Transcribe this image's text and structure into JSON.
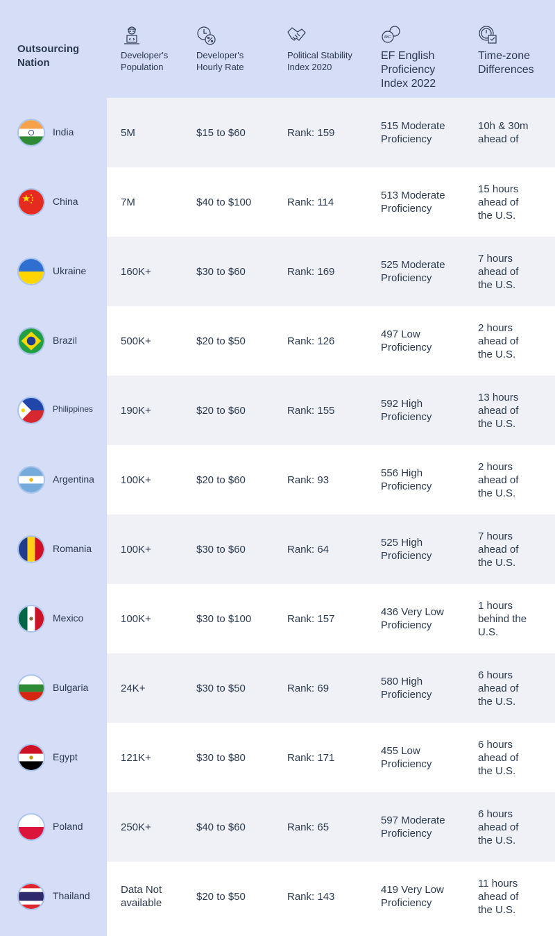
{
  "header": {
    "nation": "Outsourcing Nation",
    "population": "Developer's Population",
    "rate": "Developer's Hourly Rate",
    "stability": "Political Stability Index 2020",
    "english": "EF English Proficiency Index 2022",
    "timezone": "Time-zone Differences"
  },
  "icons": {
    "population": "developer-laptop-icon",
    "rate": "clock-percent-icon",
    "stability": "handshake-icon",
    "english": "speech-bubbles-abc-icon",
    "timezone": "clock-calendar-icon"
  },
  "colors": {
    "header_bg": "#d5ddf7",
    "row_alt": "#eff1f6",
    "row": "#ffffff",
    "text": "#2b3a4f"
  },
  "rows": [
    {
      "country": "India",
      "flag": "india-flag",
      "population": "5M",
      "rate": "$15 to $60",
      "stability": "Rank: 159",
      "english": "515 Moderate Proficiency",
      "timezone": "10h & 30m ahead of"
    },
    {
      "country": "China",
      "flag": "china-flag",
      "population": "7M",
      "rate": "$40 to $100",
      "stability": "Rank: 114",
      "english": "513 Moderate Proficiency",
      "timezone": "15 hours ahead of the U.S."
    },
    {
      "country": "Ukraine",
      "flag": "ukraine-flag",
      "population": "160K+",
      "rate": "$30 to $60",
      "stability": "Rank: 169",
      "english": "525 Moderate Proficiency",
      "timezone": "7 hours ahead of the U.S."
    },
    {
      "country": "Brazil",
      "flag": "brazil-flag",
      "population": "500K+",
      "rate": "$20 to $50",
      "stability": "Rank: 126",
      "english": "497 Low Proficiency",
      "timezone": "2 hours ahead of the U.S."
    },
    {
      "country": "Philippines",
      "flag": "philippines-flag",
      "population": "190K+",
      "rate": "$20 to $60",
      "stability": "Rank: 155",
      "english": "592 High Proficiency",
      "timezone": "13 hours ahead of the U.S."
    },
    {
      "country": "Argentina",
      "flag": "argentina-flag",
      "population": "100K+",
      "rate": "$20 to $60",
      "stability": "Rank: 93",
      "english": "556 High Proficiency",
      "timezone": "2 hours ahead of the U.S."
    },
    {
      "country": "Romania",
      "flag": "romania-flag",
      "population": "100K+",
      "rate": "$30 to $60",
      "stability": "Rank: 64",
      "english": "525 High Proficiency",
      "timezone": "7 hours ahead of the U.S."
    },
    {
      "country": "Mexico",
      "flag": "mexico-flag",
      "population": "100K+",
      "rate": "$30 to $100",
      "stability": "Rank: 157",
      "english": "436 Very Low Proficiency",
      "timezone": "1 hours behind the U.S."
    },
    {
      "country": "Bulgaria",
      "flag": "bulgaria-flag",
      "population": "24K+",
      "rate": "$30 to $50",
      "stability": "Rank: 69",
      "english": "580 High Proficiency",
      "timezone": "6 hours ahead of the U.S."
    },
    {
      "country": "Egypt",
      "flag": "egypt-flag",
      "population": "121K+",
      "rate": "$30 to $80",
      "stability": "Rank: 171",
      "english": "455 Low Proficiency",
      "timezone": "6 hours ahead of the U.S."
    },
    {
      "country": "Poland",
      "flag": "poland-flag",
      "population": "250K+",
      "rate": "$40 to $60",
      "stability": "Rank: 65",
      "english": "597 Moderate Proficiency",
      "timezone": "6 hours ahead of the U.S."
    },
    {
      "country": "Thailand",
      "flag": "thailand-flag",
      "population": "Data Not available",
      "rate": "$20 to $50",
      "stability": "Rank: 143",
      "english": "419 Very Low Proficiency",
      "timezone": "11 hours ahead of the U.S."
    }
  ]
}
